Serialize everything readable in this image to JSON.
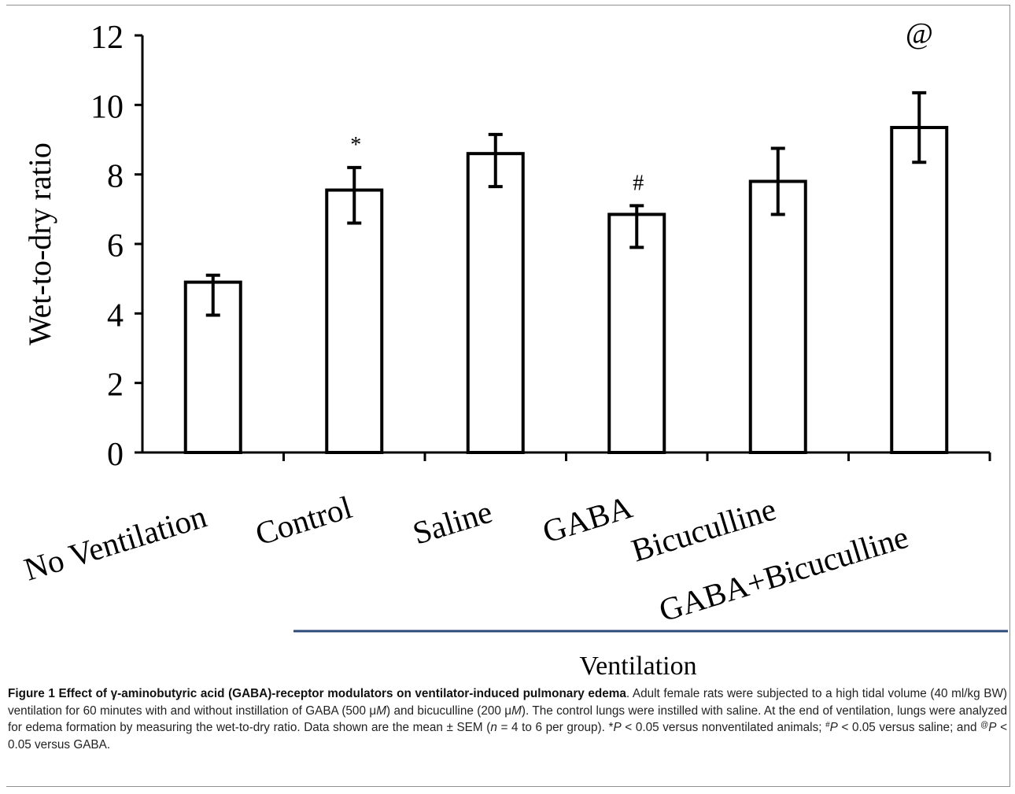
{
  "chart_data": {
    "type": "bar",
    "categories": [
      "No Ventilation",
      "Control",
      "Saline",
      "GABA",
      "Bicuculline",
      "GABA+Bicuculline"
    ],
    "values": [
      4.9,
      7.55,
      8.6,
      6.85,
      7.8,
      9.35
    ],
    "error_bars": [
      [
        3.95,
        5.1
      ],
      [
        6.6,
        8.2
      ],
      [
        7.65,
        9.15
      ],
      [
        5.9,
        7.1
      ],
      [
        6.85,
        8.75
      ],
      [
        8.35,
        10.35
      ]
    ],
    "annotations": [
      "",
      "*",
      "",
      "#",
      "",
      "@"
    ],
    "ylabel": "Wet-to-dry ratio",
    "ylim": [
      0,
      12
    ],
    "yticks": [
      "0",
      "2",
      "4",
      "6",
      "8",
      "10",
      "12"
    ],
    "group_label": "Ventilation",
    "grid": false,
    "bar_fill": "#ffffff",
    "bar_stroke": "#000000",
    "group_line_color": "#2e4a78"
  },
  "caption": {
    "bold": "Figure 1 Effect of γ-aminobutyric acid (GABA)-receptor modulators on ventilator-induced pulmonary edema",
    "p1": ". Adult female rats were subjected to a high tidal volume (40 ml/kg BW) ventilation for 60 minutes with and without instillation of GABA (500 μ",
    "m1": "M",
    "p2": ") and bicuculline (200 μ",
    "m2": "M",
    "p3": "). The control lungs were instilled with saline. At the end of ventilation, lungs were analyzed for edema formation by measuring the wet-to-dry ratio. Data shown are the mean ± SEM (",
    "n": "n",
    "p4": " = 4 to 6 per group). *",
    "P1": "P",
    "p5": " < 0.05 versus nonventilated animals; ",
    "s2": "#",
    "P2": "P",
    "p6": " < 0.05 versus saline; and ",
    "s3": "@",
    "P3": "P",
    "p7": " < 0.05 versus GABA."
  }
}
